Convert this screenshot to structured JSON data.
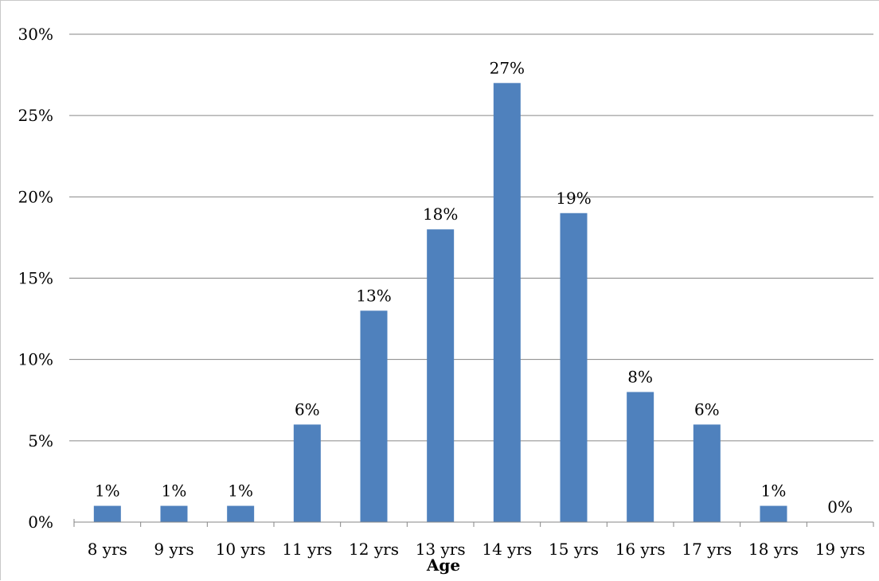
{
  "chart_data": {
    "type": "bar",
    "categories": [
      "8 yrs",
      "9 yrs",
      "10 yrs",
      "11 yrs",
      "12 yrs",
      "13 yrs",
      "14 yrs",
      "15 yrs",
      "16 yrs",
      "17 yrs",
      "18 yrs",
      "19 yrs"
    ],
    "values": [
      1,
      1,
      1,
      6,
      13,
      18,
      27,
      19,
      8,
      6,
      1,
      0
    ],
    "data_labels": [
      "1%",
      "1%",
      "1%",
      "6%",
      "13%",
      "18%",
      "27%",
      "19%",
      "8%",
      "6%",
      "1%",
      "0%"
    ],
    "title": "",
    "xlabel": "Age",
    "ylabel": "",
    "ylim": [
      0,
      30
    ],
    "yticks": [
      0,
      5,
      10,
      15,
      20,
      25,
      30
    ],
    "ytick_labels": [
      "0%",
      "5%",
      "10%",
      "15%",
      "20%",
      "25%",
      "30%"
    ],
    "grid": true,
    "legend": "none",
    "colors": {
      "bar": "#4f81bd",
      "grid": "#868686",
      "axis": "#868686"
    }
  }
}
